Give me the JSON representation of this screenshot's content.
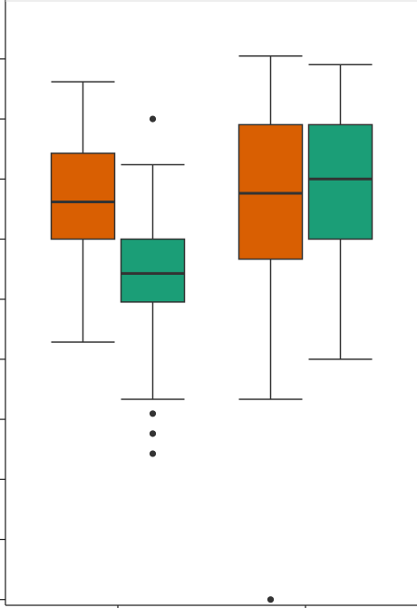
{
  "chart_data": {
    "type": "box",
    "title": "",
    "xlabel": "",
    "ylabel": "",
    "x_tick_count": 2,
    "y_tick_count": 11,
    "ylim": [
      0,
      105
    ],
    "grid": false,
    "categories": [
      "",
      ""
    ],
    "series": [
      {
        "color": "#d95f02",
        "boxes": [
          {
            "whisker_low": 46,
            "q1": 64,
            "median": 70.5,
            "q3": 79,
            "whisker_high": 91.5,
            "outliers": []
          },
          {
            "whisker_low": 36,
            "q1": 60.5,
            "median": 72,
            "q3": 84,
            "whisker_high": 96,
            "outliers": [
              1
            ]
          }
        ]
      },
      {
        "color": "#1b9e77",
        "boxes": [
          {
            "whisker_low": 36,
            "q1": 53,
            "median": 58,
            "q3": 64,
            "whisker_high": 77,
            "outliers": [
              85,
              33.5,
              30,
              26.5
            ]
          },
          {
            "whisker_low": 43,
            "q1": 64,
            "median": 74.5,
            "q3": 84,
            "whisker_high": 94.5,
            "outliers": []
          }
        ]
      }
    ]
  }
}
